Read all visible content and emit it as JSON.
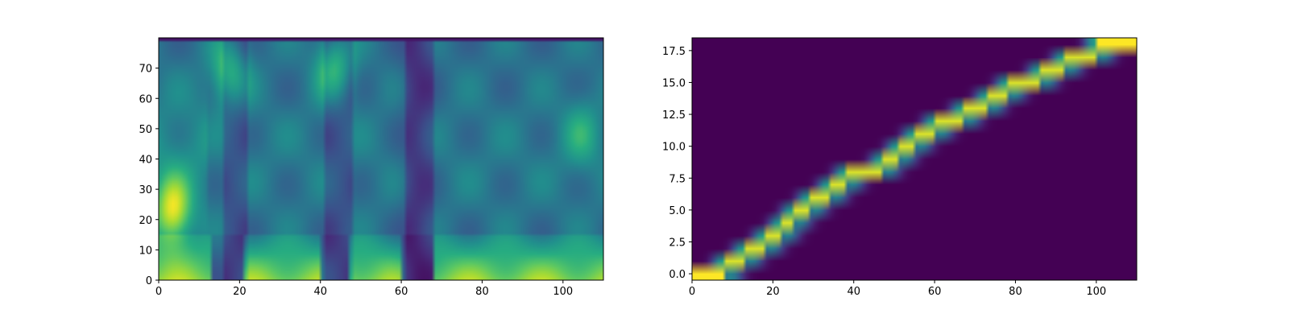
{
  "chart_data": [
    {
      "type": "heatmap",
      "title": "",
      "xlabel": "",
      "ylabel": "",
      "colormap": "viridis",
      "xlim": [
        0,
        110
      ],
      "ylim": [
        0,
        80
      ],
      "x_ticks": [
        "0",
        "20",
        "40",
        "60",
        "80",
        "100"
      ],
      "y_ticks": [
        "0",
        "10",
        "20",
        "30",
        "40",
        "50",
        "60",
        "70"
      ],
      "description_values": {
        "low_band_bursts_x": [
          [
            0,
            12
          ],
          [
            21,
            31
          ],
          [
            32,
            39
          ],
          [
            47,
            51
          ],
          [
            52,
            59
          ],
          [
            68,
            110
          ]
        ],
        "gaps_x": [
          [
            16,
            21
          ],
          [
            41,
            47
          ],
          [
            61,
            67
          ]
        ],
        "formant_blobs": [
          {
            "x": 17,
            "y": 68,
            "level": 0.78
          },
          {
            "x": 43,
            "y": 70,
            "level": 0.8
          },
          {
            "x": 3,
            "y": 22,
            "level": 0.95
          },
          {
            "x": 104,
            "y": 48,
            "level": 0.6
          }
        ]
      }
    },
    {
      "type": "heatmap",
      "title": "",
      "xlabel": "",
      "ylabel": "",
      "colormap": "viridis",
      "xlim": [
        0,
        110
      ],
      "ylim": [
        -0.5,
        18.5
      ],
      "x_ticks": [
        "0",
        "20",
        "40",
        "60",
        "80",
        "100"
      ],
      "y_ticks": [
        "0.0",
        "2.5",
        "5.0",
        "7.5",
        "10.0",
        "12.5",
        "15.0",
        "17.5"
      ],
      "alignment_path": [
        [
          0,
          0
        ],
        [
          8,
          1
        ],
        [
          13,
          2
        ],
        [
          18,
          3
        ],
        [
          22,
          4
        ],
        [
          25,
          5
        ],
        [
          29,
          6
        ],
        [
          34,
          7
        ],
        [
          38,
          8
        ],
        [
          47,
          9
        ],
        [
          51,
          10
        ],
        [
          55,
          11
        ],
        [
          60,
          12
        ],
        [
          67,
          13
        ],
        [
          73,
          14
        ],
        [
          78,
          15
        ],
        [
          86,
          16
        ],
        [
          92,
          17
        ],
        [
          100,
          18
        ],
        [
          110,
          18
        ]
      ]
    }
  ]
}
